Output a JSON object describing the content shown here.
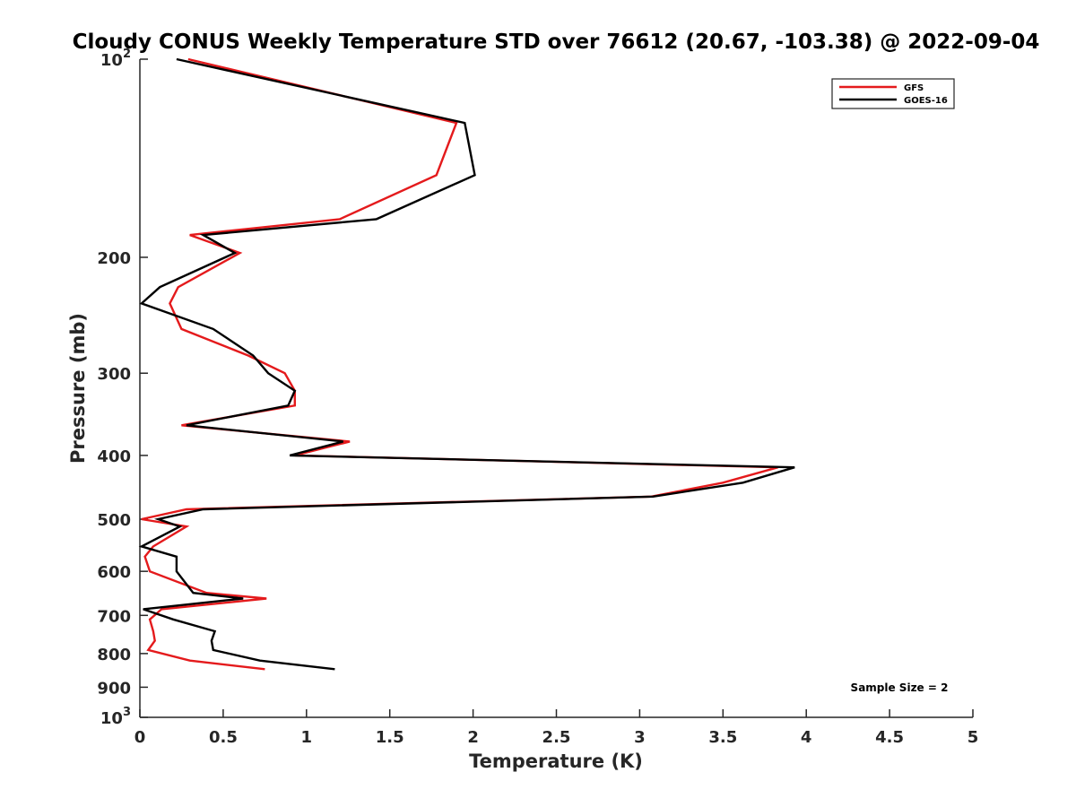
{
  "chart_data": {
    "type": "line",
    "title": "Cloudy CONUS Weekly Temperature STD over 76612 (20.67, -103.38) @ 2022-09-04",
    "xlabel": "Temperature (K)",
    "ylabel": "Pressure (mb)",
    "xlim": [
      0,
      5
    ],
    "ylim": [
      100,
      1000
    ],
    "yscale": "log",
    "y_reversed": true,
    "x_ticks": [
      0,
      0.5,
      1,
      1.5,
      2,
      2.5,
      3,
      3.5,
      4,
      4.5,
      5
    ],
    "x_tick_labels": [
      "0",
      "0.5",
      "1",
      "1.5",
      "2",
      "2.5",
      "3",
      "3.5",
      "4",
      "4.5",
      "5"
    ],
    "y_ticks": [
      100,
      200,
      300,
      400,
      500,
      600,
      700,
      800,
      900,
      1000
    ],
    "y_tick_labels": [
      {
        "base": "10",
        "exp": "2"
      },
      {
        "base": "200",
        "exp": ""
      },
      {
        "base": "300",
        "exp": ""
      },
      {
        "base": "400",
        "exp": ""
      },
      {
        "base": "500",
        "exp": ""
      },
      {
        "base": "600",
        "exp": ""
      },
      {
        "base": "700",
        "exp": ""
      },
      {
        "base": "800",
        "exp": ""
      },
      {
        "base": "900",
        "exp": ""
      },
      {
        "base": "10",
        "exp": "3"
      }
    ],
    "legend_position": "top-right",
    "annotation": "Sample Size = 2",
    "series": [
      {
        "name": "GFS",
        "color": "#e41a1c",
        "points": [
          [
            0.29,
            100
          ],
          [
            1.9,
            125
          ],
          [
            1.78,
            150
          ],
          [
            1.2,
            175
          ],
          [
            0.3,
            185
          ],
          [
            0.6,
            197
          ],
          [
            0.23,
            222
          ],
          [
            0.18,
            235
          ],
          [
            0.25,
            257
          ],
          [
            0.65,
            282
          ],
          [
            0.87,
            300
          ],
          [
            0.93,
            319
          ],
          [
            0.93,
            336
          ],
          [
            0.25,
            360
          ],
          [
            1.26,
            381
          ],
          [
            0.93,
            400
          ],
          [
            3.83,
            417
          ],
          [
            3.5,
            440
          ],
          [
            3.07,
            462
          ],
          [
            0.28,
            483
          ],
          [
            0.01,
            500
          ],
          [
            0.28,
            513
          ],
          [
            0.08,
            550
          ],
          [
            0.03,
            570
          ],
          [
            0.06,
            600
          ],
          [
            0.4,
            647
          ],
          [
            0.76,
            660
          ],
          [
            0.13,
            685
          ],
          [
            0.06,
            710
          ],
          [
            0.08,
            740
          ],
          [
            0.09,
            765
          ],
          [
            0.05,
            790
          ],
          [
            0.3,
            820
          ],
          [
            0.75,
            845
          ]
        ]
      },
      {
        "name": "GOES-16",
        "color": "#000000",
        "points": [
          [
            0.22,
            100
          ],
          [
            1.95,
            125
          ],
          [
            2.01,
            150
          ],
          [
            1.42,
            175
          ],
          [
            0.38,
            185
          ],
          [
            0.57,
            197
          ],
          [
            0.12,
            222
          ],
          [
            0.01,
            235
          ],
          [
            0.44,
            257
          ],
          [
            0.68,
            282
          ],
          [
            0.77,
            300
          ],
          [
            0.93,
            319
          ],
          [
            0.89,
            336
          ],
          [
            0.28,
            360
          ],
          [
            1.22,
            381
          ],
          [
            0.9,
            400
          ],
          [
            3.93,
            417
          ],
          [
            3.62,
            440
          ],
          [
            3.08,
            462
          ],
          [
            0.38,
            483
          ],
          [
            0.11,
            500
          ],
          [
            0.24,
            513
          ],
          [
            0.01,
            550
          ],
          [
            0.22,
            570
          ],
          [
            0.22,
            600
          ],
          [
            0.32,
            647
          ],
          [
            0.62,
            660
          ],
          [
            0.02,
            685
          ],
          [
            0.2,
            710
          ],
          [
            0.45,
            740
          ],
          [
            0.43,
            765
          ],
          [
            0.44,
            790
          ],
          [
            0.72,
            820
          ],
          [
            1.17,
            845
          ]
        ]
      }
    ]
  }
}
